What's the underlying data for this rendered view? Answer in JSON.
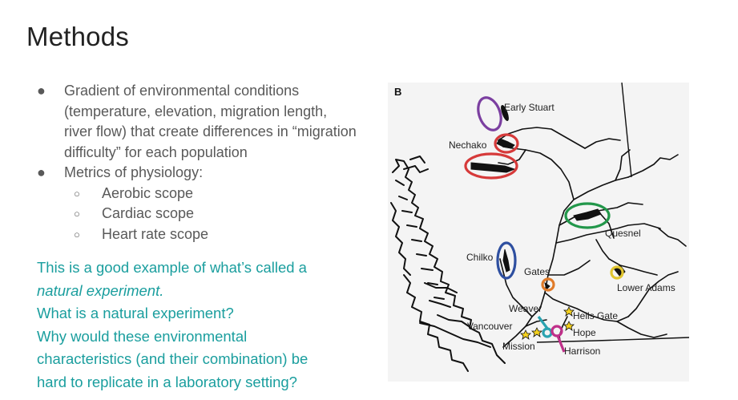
{
  "slide": {
    "title": "Methods",
    "bullets": [
      "Gradient of environmental conditions (temperature, elevation, migration length, river flow) that create differences in “migration difficulty” for each population",
      "Metrics of physiology:"
    ],
    "sub_bullets": [
      "Aerobic scope",
      "Cardiac scope",
      "Heart rate scope"
    ],
    "paragraph": {
      "line1": "This is a good example of what’s called a",
      "line2_italic": "natural experiment.",
      "line3": "What is a natural experiment?",
      "line4": "Why would these environmental",
      "line5": "characteristics (and their combination) be",
      "line6": "hard to replicate in a laboratory setting?"
    },
    "text_color": "#1a9e9e"
  },
  "map": {
    "panel_label": "B",
    "sites": {
      "early_stuart": "Early Stuart",
      "nechako": "Nechako",
      "quesnel": "Quesnel",
      "chilko": "Chilko",
      "gates": "Gates",
      "lower_adams": "Lower Adams",
      "weaver": "Weaver",
      "hells_gate": "Hells Gate",
      "vancouver": "Vancouver",
      "hope": "Hope",
      "mission": "Mission",
      "harrison": "Harrison"
    },
    "marker_colors": {
      "early_stuart": "#7b3fa0",
      "nechako": "#d63a3a",
      "quesnel": "#22974a",
      "chilko": "#2e4fa0",
      "gates": "#e07b2a",
      "lower_adams": "#e0c530",
      "weaver": "#2aa3b0",
      "harrison": "#c0308a",
      "star": "#f5d21e"
    }
  }
}
